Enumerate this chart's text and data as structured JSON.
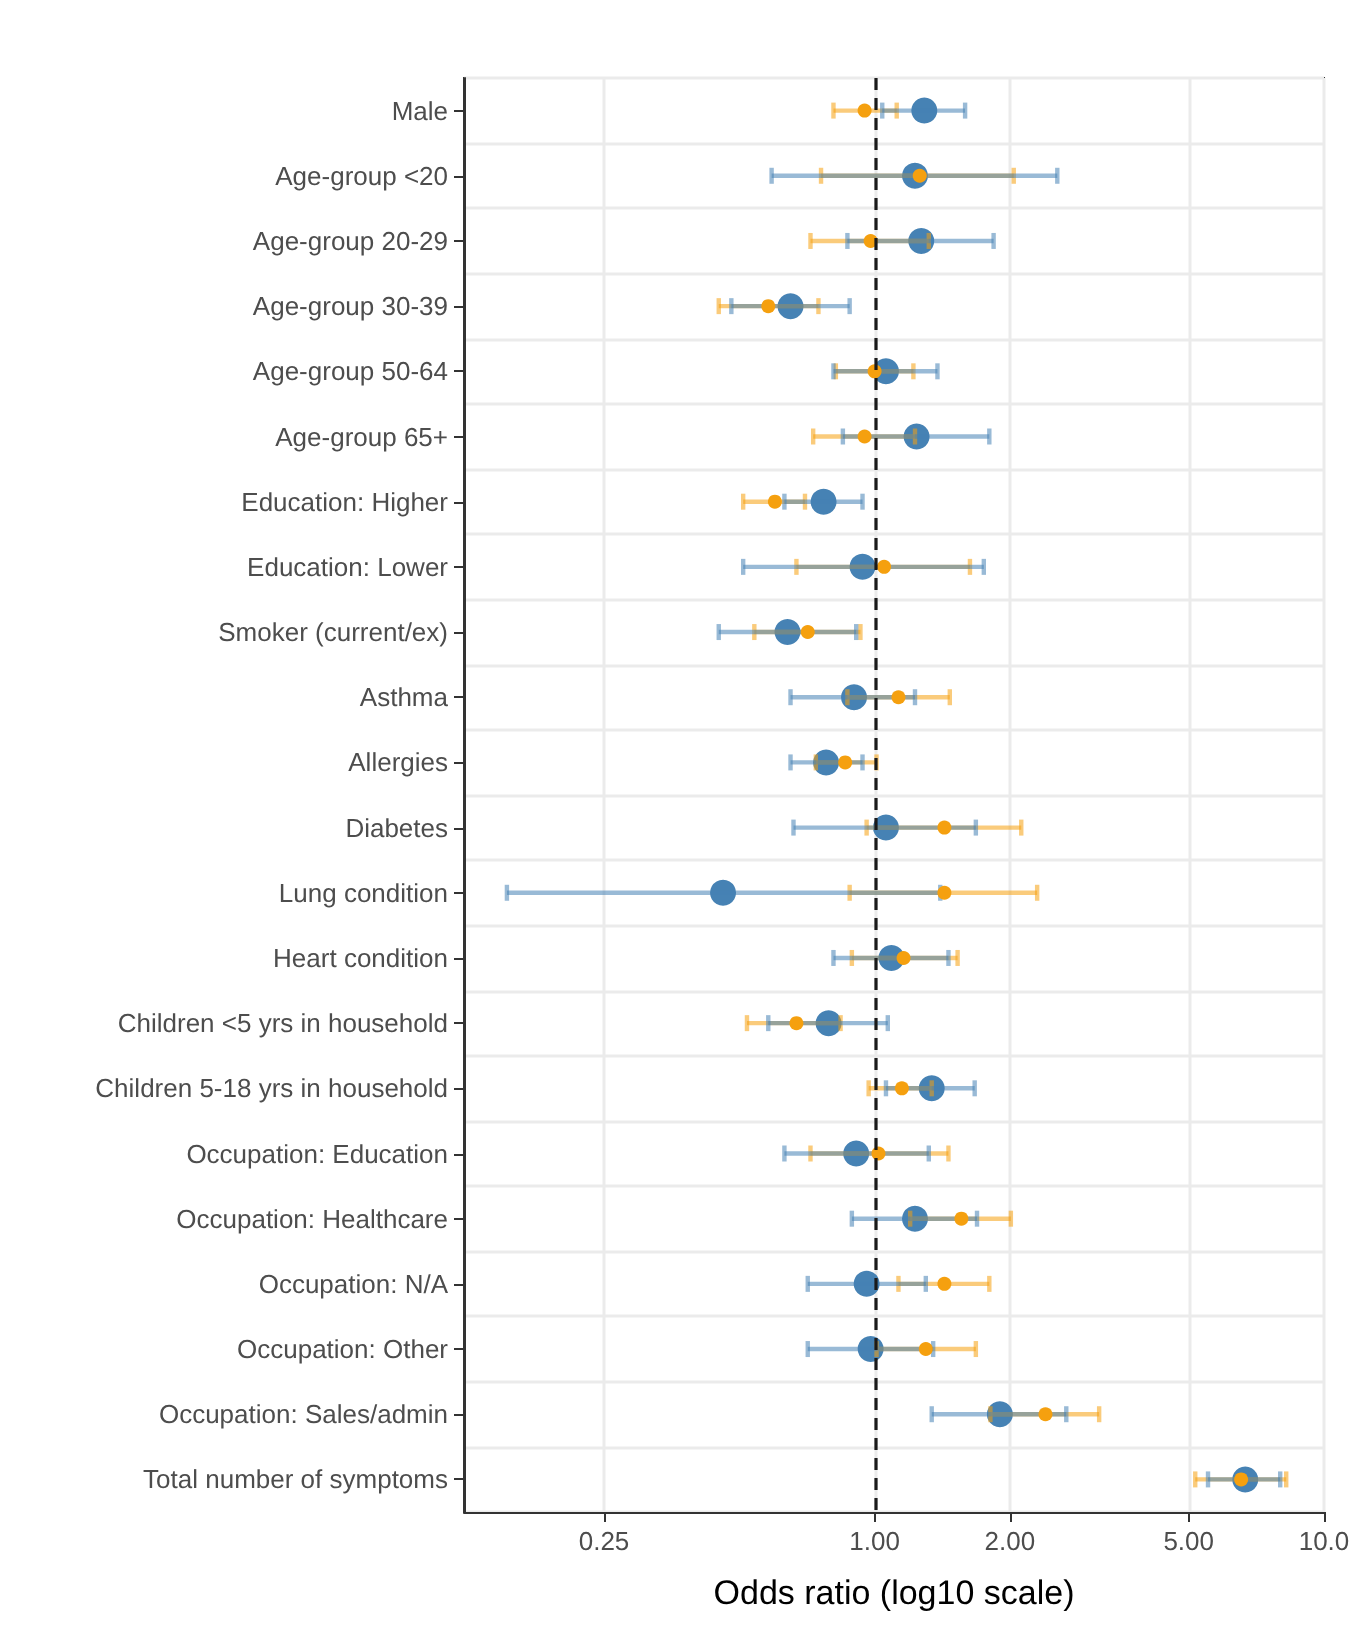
{
  "chart_data": {
    "type": "scatter",
    "xlabel": "Odds ratio (log10 scale)",
    "categories": [
      "Male",
      "Age-group <20",
      "Age-group 20-29",
      "Age-group 30-39",
      "Age-group 50-64",
      "Age-group 65+",
      "Education: Higher",
      "Education: Lower",
      "Smoker (current/ex)",
      "Asthma",
      "Allergies",
      "Diabetes",
      "Lung condition",
      "Heart condition",
      "Children <5 yrs in household",
      "Children 5-18 yrs in household",
      "Occupation: Education",
      "Occupation: Healthcare",
      "Occupation: N/A",
      "Occupation: Other",
      "Occupation: Sales/admin",
      "Total number of symptoms"
    ],
    "series": [
      {
        "color": "#f5a00f",
        "values": [
          0.95,
          1.26,
          0.98,
          0.58,
          1.0,
          0.95,
          0.6,
          1.05,
          0.71,
          1.13,
          0.86,
          1.43,
          1.43,
          1.16,
          0.67,
          1.15,
          1.02,
          1.56,
          1.43,
          1.3,
          2.4,
          6.54
        ],
        "errors": [
          [
            0.81,
            1.12
          ],
          [
            0.76,
            2.04
          ],
          [
            0.72,
            1.32
          ],
          [
            0.45,
            0.75
          ],
          [
            0.82,
            1.22
          ],
          [
            0.73,
            1.23
          ],
          [
            0.51,
            0.7
          ],
          [
            0.67,
            1.63
          ],
          [
            0.54,
            0.93
          ],
          [
            0.87,
            1.47
          ],
          [
            0.74,
            1.01
          ],
          [
            0.96,
            2.12
          ],
          [
            0.88,
            2.3
          ],
          [
            0.89,
            1.53
          ],
          [
            0.52,
            0.84
          ],
          [
            0.97,
            1.34
          ],
          [
            0.72,
            1.46
          ],
          [
            1.2,
            2.01
          ],
          [
            1.13,
            1.8
          ],
          [
            1.01,
            1.68
          ],
          [
            1.81,
            3.16
          ],
          [
            5.17,
            8.24
          ]
        ]
      },
      {
        "color": "#4682b4",
        "values": [
          1.29,
          1.23,
          1.27,
          0.65,
          1.06,
          1.24,
          0.77,
          0.94,
          0.64,
          0.9,
          0.78,
          1.06,
          0.46,
          1.09,
          0.79,
          1.34,
          0.91,
          1.23,
          0.96,
          0.98,
          1.9,
          6.68
        ],
        "errors": [
          [
            1.04,
            1.59
          ],
          [
            0.59,
            2.55
          ],
          [
            0.87,
            1.84
          ],
          [
            0.48,
            0.88
          ],
          [
            0.81,
            1.38
          ],
          [
            0.85,
            1.8
          ],
          [
            0.63,
            0.94
          ],
          [
            0.51,
            1.75
          ],
          [
            0.45,
            0.91
          ],
          [
            0.65,
            1.23
          ],
          [
            0.65,
            0.94
          ],
          [
            0.66,
            1.68
          ],
          [
            0.152,
            1.4
          ],
          [
            0.81,
            1.46
          ],
          [
            0.58,
            1.07
          ],
          [
            1.06,
            1.67
          ],
          [
            0.63,
            1.32
          ],
          [
            0.89,
            1.69
          ],
          [
            0.71,
            1.3
          ],
          [
            0.71,
            1.35
          ],
          [
            1.34,
            2.67
          ],
          [
            5.52,
            7.99
          ]
        ]
      }
    ],
    "xlim": [
      0.122,
      10
    ],
    "orientation": "horizontal",
    "xticks": [
      {
        "value": 0.25,
        "label": "0.25"
      },
      {
        "value": 1,
        "label": "1.00"
      },
      {
        "value": 2,
        "label": "2.00"
      },
      {
        "value": 5,
        "label": "5.00"
      },
      {
        "value": 10,
        "label": "10.0"
      }
    ],
    "log": "x",
    "grid": true,
    "marker": "circle",
    "ref_lines": [
      {
        "axis": "x",
        "value": 1,
        "color": "#1a1a1a",
        "line_style": "dashed"
      }
    ]
  }
}
